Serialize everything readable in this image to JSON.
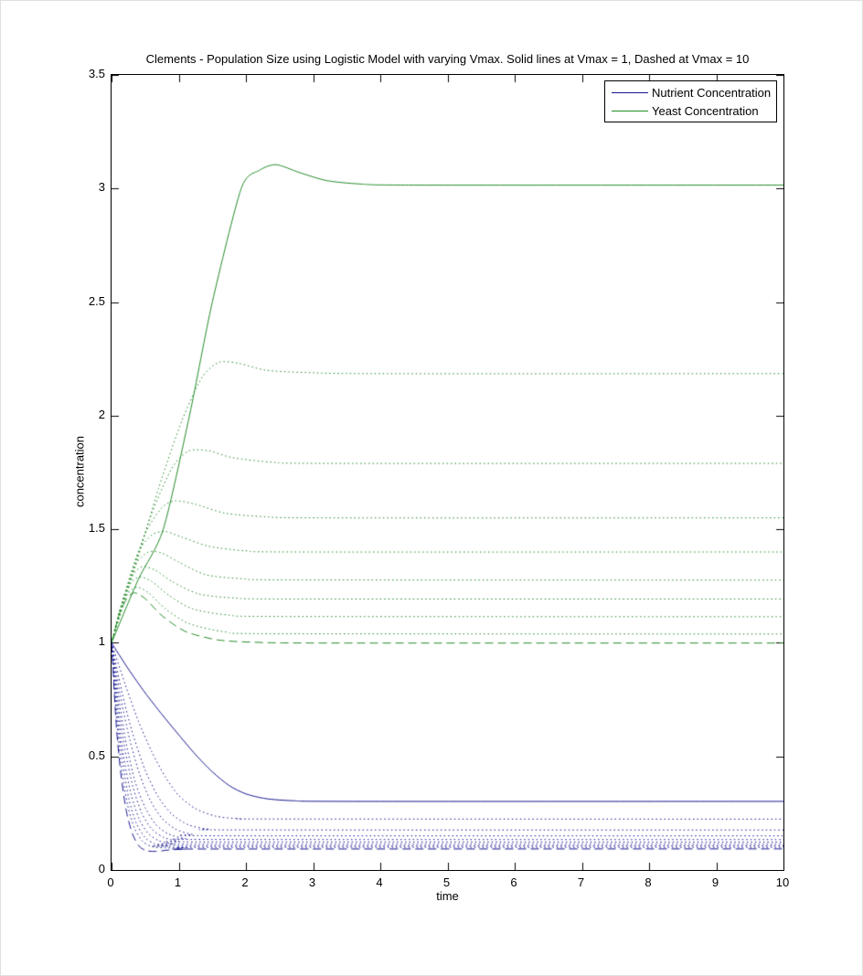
{
  "figure": {
    "title": "Clements - Population Size using Logistic Model with varying Vmax. Solid lines at Vmax = 1, Dashed at Vmax = 10"
  },
  "chart_data": {
    "type": "line",
    "title": "Clements - Population Size using Logistic Model with varying Vmax. Solid lines at Vmax = 1, Dashed at Vmax = 10",
    "xlabel": "time",
    "ylabel": "concentration",
    "xlim": [
      0,
      10
    ],
    "ylim": [
      0,
      3.5
    ],
    "grid": false,
    "xticks": {
      "values": [
        0,
        1,
        2,
        3,
        4,
        5,
        6,
        7,
        8,
        9,
        10
      ],
      "labels": [
        "0",
        "1",
        "2",
        "3",
        "4",
        "5",
        "6",
        "7",
        "8",
        "9",
        "10"
      ]
    },
    "yticks": {
      "values": [
        0,
        0.5,
        1,
        1.5,
        2,
        2.5,
        3,
        3.5
      ],
      "labels": [
        "0",
        "0.5",
        "1",
        "1.5",
        "2",
        "2.5",
        "3",
        "3.5"
      ]
    },
    "colors": {
      "nutrient": "#15158E",
      "yeast": "#238B28"
    },
    "legend": {
      "position": "top-right",
      "entries": [
        {
          "label": "Nutrient Concentration",
          "color": "#15158E",
          "line_style": "solid"
        },
        {
          "label": "Yeast Concentration",
          "color": "#238B28",
          "line_style": "solid"
        }
      ]
    },
    "series": [
      {
        "name": "yeast-vmax-1",
        "group": "yeast",
        "vmax": 1,
        "line_style": "solid",
        "points": [
          [
            0,
            1
          ],
          [
            0.4,
            1.28
          ],
          [
            0.77,
            1.5
          ],
          [
            1.16,
            2.0
          ],
          [
            1.5,
            2.5
          ],
          [
            1.93,
            3.0
          ],
          [
            2.2,
            3.08
          ],
          [
            2.45,
            3.105
          ],
          [
            2.8,
            3.07
          ],
          [
            3.2,
            3.035
          ],
          [
            3.7,
            3.02
          ],
          [
            4.5,
            3.015
          ],
          [
            10,
            3.015
          ]
        ]
      },
      {
        "name": "yeast-vmax-2",
        "group": "yeast",
        "vmax": 2,
        "line_style": "dotted",
        "points": [
          [
            0,
            1
          ],
          [
            0.35,
            1.33
          ],
          [
            0.7,
            1.68
          ],
          [
            1.05,
            1.98
          ],
          [
            1.35,
            2.17
          ],
          [
            1.6,
            2.235
          ],
          [
            1.9,
            2.23
          ],
          [
            2.3,
            2.2
          ],
          [
            2.9,
            2.19
          ],
          [
            4,
            2.185
          ],
          [
            10,
            2.185
          ]
        ]
      },
      {
        "name": "yeast-vmax-3",
        "group": "yeast",
        "vmax": 3,
        "line_style": "dotted",
        "points": [
          [
            0,
            1
          ],
          [
            0.3,
            1.3
          ],
          [
            0.6,
            1.57
          ],
          [
            0.9,
            1.77
          ],
          [
            1.15,
            1.845
          ],
          [
            1.45,
            1.845
          ],
          [
            1.8,
            1.815
          ],
          [
            2.4,
            1.795
          ],
          [
            3.2,
            1.79
          ],
          [
            10,
            1.79
          ]
        ]
      },
      {
        "name": "yeast-vmax-4",
        "group": "yeast",
        "vmax": 4,
        "line_style": "dotted",
        "points": [
          [
            0,
            1
          ],
          [
            0.25,
            1.26
          ],
          [
            0.5,
            1.48
          ],
          [
            0.75,
            1.595
          ],
          [
            0.95,
            1.625
          ],
          [
            1.25,
            1.61
          ],
          [
            1.7,
            1.57
          ],
          [
            2.3,
            1.555
          ],
          [
            3.2,
            1.55
          ],
          [
            10,
            1.55
          ]
        ]
      },
      {
        "name": "yeast-vmax-5",
        "group": "yeast",
        "vmax": 5,
        "line_style": "dotted",
        "points": [
          [
            0,
            1
          ],
          [
            0.2,
            1.22
          ],
          [
            0.4,
            1.4
          ],
          [
            0.6,
            1.475
          ],
          [
            0.8,
            1.49
          ],
          [
            1.05,
            1.465
          ],
          [
            1.45,
            1.425
          ],
          [
            2.0,
            1.405
          ],
          [
            2.8,
            1.4
          ],
          [
            10,
            1.4
          ]
        ]
      },
      {
        "name": "yeast-vmax-6",
        "group": "yeast",
        "vmax": 6,
        "line_style": "dotted",
        "points": [
          [
            0,
            1
          ],
          [
            0.18,
            1.2
          ],
          [
            0.36,
            1.345
          ],
          [
            0.55,
            1.4
          ],
          [
            0.75,
            1.395
          ],
          [
            1.0,
            1.355
          ],
          [
            1.4,
            1.3
          ],
          [
            1.95,
            1.282
          ],
          [
            2.8,
            1.277
          ],
          [
            10,
            1.276
          ]
        ]
      },
      {
        "name": "yeast-vmax-7",
        "group": "yeast",
        "vmax": 7,
        "line_style": "dotted",
        "points": [
          [
            0,
            1
          ],
          [
            0.15,
            1.17
          ],
          [
            0.3,
            1.29
          ],
          [
            0.45,
            1.335
          ],
          [
            0.65,
            1.32
          ],
          [
            0.9,
            1.27
          ],
          [
            1.3,
            1.215
          ],
          [
            1.85,
            1.197
          ],
          [
            2.7,
            1.193
          ],
          [
            10,
            1.193
          ]
        ]
      },
      {
        "name": "yeast-vmax-8",
        "group": "yeast",
        "vmax": 8,
        "line_style": "dotted",
        "points": [
          [
            0,
            1
          ],
          [
            0.14,
            1.16
          ],
          [
            0.28,
            1.26
          ],
          [
            0.42,
            1.29
          ],
          [
            0.6,
            1.27
          ],
          [
            0.85,
            1.21
          ],
          [
            1.2,
            1.15
          ],
          [
            1.75,
            1.122
          ],
          [
            2.6,
            1.116
          ],
          [
            10,
            1.115
          ]
        ]
      },
      {
        "name": "yeast-vmax-9",
        "group": "yeast",
        "vmax": 9,
        "line_style": "dotted",
        "points": [
          [
            0,
            1
          ],
          [
            0.12,
            1.14
          ],
          [
            0.25,
            1.22
          ],
          [
            0.38,
            1.245
          ],
          [
            0.55,
            1.22
          ],
          [
            0.8,
            1.15
          ],
          [
            1.15,
            1.085
          ],
          [
            1.7,
            1.048
          ],
          [
            2.5,
            1.04
          ],
          [
            10,
            1.039
          ]
        ]
      },
      {
        "name": "yeast-vmax-10",
        "group": "yeast",
        "vmax": 10,
        "line_style": "dashed",
        "points": [
          [
            0,
            1
          ],
          [
            0.12,
            1.13
          ],
          [
            0.24,
            1.2
          ],
          [
            0.35,
            1.22
          ],
          [
            0.5,
            1.195
          ],
          [
            0.75,
            1.12
          ],
          [
            1.1,
            1.05
          ],
          [
            1.6,
            1.012
          ],
          [
            2.3,
            1.001
          ],
          [
            3.5,
            0.999
          ],
          [
            10,
            0.999
          ]
        ]
      },
      {
        "name": "nutrient-vmax-1",
        "group": "nutrient",
        "vmax": 1,
        "line_style": "solid",
        "points": [
          [
            0,
            1
          ],
          [
            0.25,
            0.885
          ],
          [
            0.5,
            0.78
          ],
          [
            0.75,
            0.685
          ],
          [
            1,
            0.595
          ],
          [
            1.25,
            0.508
          ],
          [
            1.5,
            0.432
          ],
          [
            1.75,
            0.372
          ],
          [
            2,
            0.335
          ],
          [
            2.3,
            0.314
          ],
          [
            2.7,
            0.305
          ],
          [
            3.5,
            0.302
          ],
          [
            10,
            0.302
          ]
        ]
      },
      {
        "name": "nutrient-vmax-2",
        "group": "nutrient",
        "vmax": 2,
        "line_style": "dotted",
        "points": [
          [
            0,
            1
          ],
          [
            0.2,
            0.82
          ],
          [
            0.4,
            0.655
          ],
          [
            0.6,
            0.52
          ],
          [
            0.8,
            0.41
          ],
          [
            1.0,
            0.328
          ],
          [
            1.25,
            0.27
          ],
          [
            1.55,
            0.237
          ],
          [
            1.9,
            0.226
          ],
          [
            2.5,
            0.2245
          ],
          [
            10,
            0.224
          ]
        ]
      },
      {
        "name": "nutrient-vmax-3",
        "group": "nutrient",
        "vmax": 3,
        "line_style": "dotted",
        "points": [
          [
            0,
            1
          ],
          [
            0.15,
            0.79
          ],
          [
            0.3,
            0.615
          ],
          [
            0.5,
            0.44
          ],
          [
            0.7,
            0.32
          ],
          [
            0.9,
            0.245
          ],
          [
            1.15,
            0.198
          ],
          [
            1.45,
            0.18
          ],
          [
            1.9,
            0.1765
          ],
          [
            10,
            0.176
          ]
        ]
      },
      {
        "name": "nutrient-vmax-4",
        "group": "nutrient",
        "vmax": 4,
        "line_style": "dotted",
        "points": [
          [
            0,
            1
          ],
          [
            0.13,
            0.77
          ],
          [
            0.27,
            0.575
          ],
          [
            0.42,
            0.42
          ],
          [
            0.58,
            0.305
          ],
          [
            0.75,
            0.228
          ],
          [
            0.95,
            0.18
          ],
          [
            1.2,
            0.157
          ],
          [
            1.6,
            0.1505
          ],
          [
            10,
            0.15
          ]
        ]
      },
      {
        "name": "nutrient-vmax-5",
        "group": "nutrient",
        "vmax": 5,
        "line_style": "dotted",
        "points": [
          [
            0,
            1
          ],
          [
            0.11,
            0.755
          ],
          [
            0.22,
            0.555
          ],
          [
            0.35,
            0.39
          ],
          [
            0.5,
            0.275
          ],
          [
            0.66,
            0.2
          ],
          [
            0.85,
            0.158
          ],
          [
            1.1,
            0.139
          ],
          [
            1.5,
            0.1345
          ],
          [
            10,
            0.134
          ]
        ]
      },
      {
        "name": "nutrient-vmax-6",
        "group": "nutrient",
        "vmax": 6,
        "line_style": "dotted",
        "points": [
          [
            0,
            1
          ],
          [
            0.1,
            0.73
          ],
          [
            0.2,
            0.53
          ],
          [
            0.32,
            0.365
          ],
          [
            0.45,
            0.25
          ],
          [
            0.6,
            0.18
          ],
          [
            0.78,
            0.143
          ],
          [
            1.0,
            0.127
          ],
          [
            1.4,
            0.1235
          ],
          [
            10,
            0.123
          ]
        ]
      },
      {
        "name": "nutrient-vmax-7",
        "group": "nutrient",
        "vmax": 7,
        "line_style": "dotted",
        "points": [
          [
            0,
            1
          ],
          [
            0.09,
            0.71
          ],
          [
            0.18,
            0.5
          ],
          [
            0.29,
            0.335
          ],
          [
            0.41,
            0.225
          ],
          [
            0.55,
            0.16
          ],
          [
            0.71,
            0.128
          ],
          [
            0.92,
            0.115
          ],
          [
            1.3,
            0.1135
          ],
          [
            10,
            0.1135
          ]
        ]
      },
      {
        "name": "nutrient-vmax-8",
        "group": "nutrient",
        "vmax": 8,
        "line_style": "dotted",
        "points": [
          [
            0,
            1
          ],
          [
            0.08,
            0.69
          ],
          [
            0.17,
            0.47
          ],
          [
            0.26,
            0.31
          ],
          [
            0.37,
            0.205
          ],
          [
            0.5,
            0.143
          ],
          [
            0.65,
            0.114
          ],
          [
            0.85,
            0.1055
          ],
          [
            1.2,
            0.1055
          ],
          [
            10,
            0.106
          ]
        ]
      },
      {
        "name": "nutrient-vmax-9",
        "group": "nutrient",
        "vmax": 9,
        "line_style": "dotted",
        "points": [
          [
            0,
            1
          ],
          [
            0.075,
            0.665
          ],
          [
            0.15,
            0.445
          ],
          [
            0.24,
            0.285
          ],
          [
            0.34,
            0.185
          ],
          [
            0.46,
            0.127
          ],
          [
            0.6,
            0.103
          ],
          [
            0.8,
            0.0975
          ],
          [
            1.1,
            0.0985
          ],
          [
            1.6,
            0.1
          ],
          [
            10,
            0.1
          ]
        ]
      },
      {
        "name": "nutrient-vmax-10",
        "group": "nutrient",
        "vmax": 10,
        "line_style": "dashed",
        "points": [
          [
            0,
            1
          ],
          [
            0.07,
            0.64
          ],
          [
            0.14,
            0.42
          ],
          [
            0.22,
            0.26
          ],
          [
            0.31,
            0.16
          ],
          [
            0.41,
            0.105
          ],
          [
            0.52,
            0.085
          ],
          [
            0.66,
            0.082
          ],
          [
            0.85,
            0.088
          ],
          [
            1.1,
            0.092
          ],
          [
            1.5,
            0.0925
          ],
          [
            10,
            0.093
          ]
        ]
      }
    ]
  }
}
